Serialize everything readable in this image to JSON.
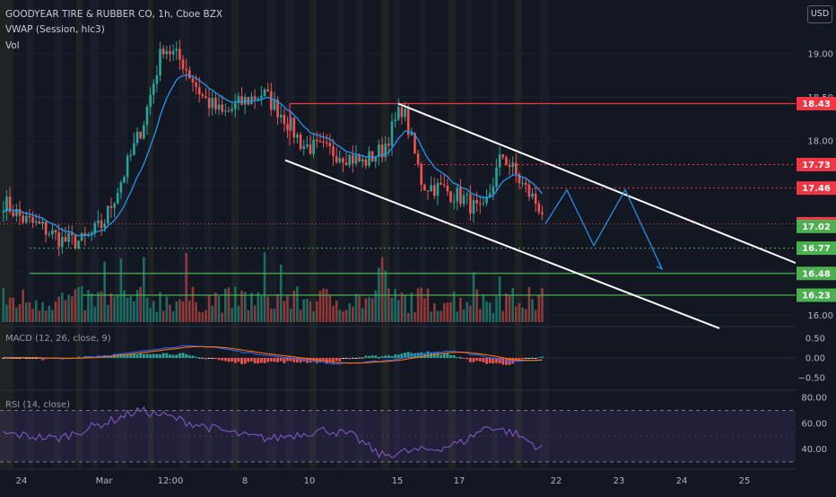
{
  "header": {
    "title": "GOODYEAR TIRE & RUBBER CO, 1h, Cboe BZX",
    "vwap_label": "VWAP (Session, hlc3)",
    "vol_label": "Vol"
  },
  "currency": "USD",
  "colors": {
    "background": "#131722",
    "up": "#26a69a",
    "down": "#ef5350",
    "vwap": "#2196f3",
    "channel": "#ffffff",
    "resistance": "#f23645",
    "support": "#4caf50",
    "projection": "#2196f3",
    "macd_line": "#2962ff",
    "signal_line": "#ff6d00",
    "rsi_line": "#7e57c2"
  },
  "chart_data": [
    {
      "type": "candlestick",
      "pane": "price",
      "y_axis_ticks": [
        16.0,
        16.5,
        17.0,
        17.5,
        18.0,
        18.5,
        19.0
      ],
      "ylim": [
        15.88,
        19.62
      ],
      "x_ticks": [
        "24",
        "Mar",
        "12:00",
        "8",
        "10",
        "15",
        "17",
        "22",
        "23",
        "24",
        "25"
      ],
      "price_tags": [
        {
          "value": "18.43",
          "color": "#f23645"
        },
        {
          "value": "17.73",
          "color": "#f23645"
        },
        {
          "value": "17.46",
          "color": "#f23645"
        },
        {
          "value": "17.05",
          "color": "#f23645"
        },
        {
          "value": "17.02",
          "color": "#4caf50"
        },
        {
          "value": "16.77",
          "color": "#4caf50"
        },
        {
          "value": "16.48",
          "color": "#4caf50"
        },
        {
          "value": "16.23",
          "color": "#4caf50"
        }
      ],
      "horizontal_levels": [
        {
          "value": 18.43,
          "style": "solid",
          "color": "#f23645"
        },
        {
          "value": 17.73,
          "style": "dotted",
          "color": "#f23645"
        },
        {
          "value": 17.46,
          "style": "dotted",
          "color": "#f23645"
        },
        {
          "value": 16.77,
          "style": "dotted",
          "color": "#4caf50"
        },
        {
          "value": 16.48,
          "style": "solid",
          "color": "#4caf50"
        },
        {
          "value": 16.23,
          "style": "solid",
          "color": "#4caf50"
        }
      ],
      "channel": {
        "upper": [
          {
            "x": "Mar 15",
            "y": 18.43
          },
          {
            "x": "Mar 25",
            "y": 16.6
          }
        ],
        "lower": [
          {
            "x": "Mar 9",
            "y": 17.78
          },
          {
            "x": "Mar 24",
            "y": 15.85
          }
        ]
      },
      "projection_path": [
        17.05,
        17.44,
        16.8,
        17.44,
        16.53
      ],
      "price_anchors": [
        17.3,
        17.1,
        17.0,
        16.85,
        16.85,
        17.05,
        17.6,
        18.2,
        19.1,
        18.9,
        18.5,
        18.3,
        18.45,
        18.55,
        18.3,
        17.95,
        17.9,
        17.85,
        17.75,
        17.9,
        18.4,
        17.5,
        17.45,
        17.35,
        17.15,
        17.85,
        17.5,
        17.2
      ]
    },
    {
      "type": "bar",
      "pane": "macd",
      "title": "MACD (12, 26, close, 9)",
      "y_axis_ticks": [
        0.5,
        0.0,
        -0.5
      ],
      "ylim": [
        -0.8,
        0.8
      ],
      "series": [
        "MACD",
        "Signal",
        "Histogram"
      ]
    },
    {
      "type": "line",
      "pane": "rsi",
      "title": "RSI (14, close)",
      "y_axis_ticks": [
        80.0,
        60.0,
        40.0
      ],
      "bands": [
        70,
        30
      ],
      "ylim": [
        25,
        85
      ],
      "series": [
        "RSI"
      ]
    }
  ]
}
